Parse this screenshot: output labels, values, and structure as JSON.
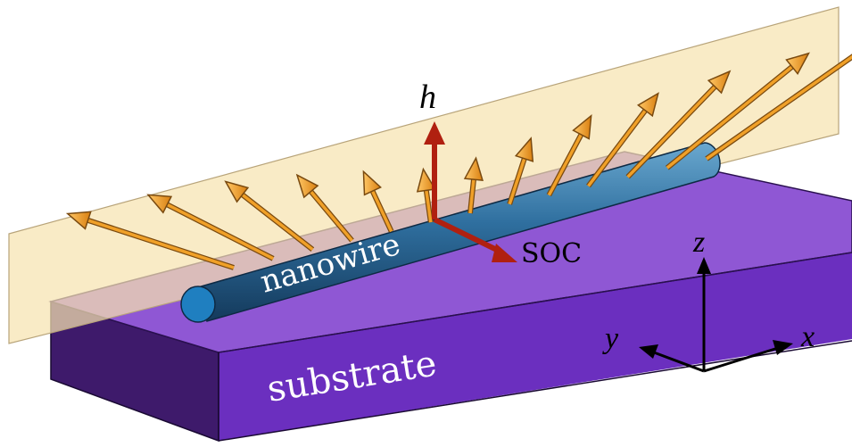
{
  "labels": {
    "nanowire": "nanowire",
    "substrate": "substrate",
    "field": "h",
    "soc": "SOC",
    "axis_x": "x",
    "axis_y": "y",
    "axis_z": "z"
  },
  "colors": {
    "substrate_top": "#8f57d4",
    "substrate_front": "#6b2fbf",
    "substrate_side": "#3e1a6b",
    "plane_fill": "#f7e3b0",
    "plane_edge": "#b8a47a",
    "nanowire": "#2f6f9f",
    "nanowire_end": "#1f7fc0",
    "spin_arrow": "#f0a028",
    "spin_arrow_edge": "#7a4a10",
    "field_arrow": "#b02010",
    "axis": "#000000"
  },
  "spin_arrows": [
    {
      "angle_deg": -72
    },
    {
      "angle_deg": -63
    },
    {
      "angle_deg": -52
    },
    {
      "angle_deg": -40
    },
    {
      "angle_deg": -25
    },
    {
      "angle_deg": -8
    },
    {
      "angle_deg": 6
    },
    {
      "angle_deg": 18
    },
    {
      "angle_deg": 28
    },
    {
      "angle_deg": 37
    },
    {
      "angle_deg": 44
    },
    {
      "angle_deg": 51
    },
    {
      "angle_deg": 55
    }
  ]
}
